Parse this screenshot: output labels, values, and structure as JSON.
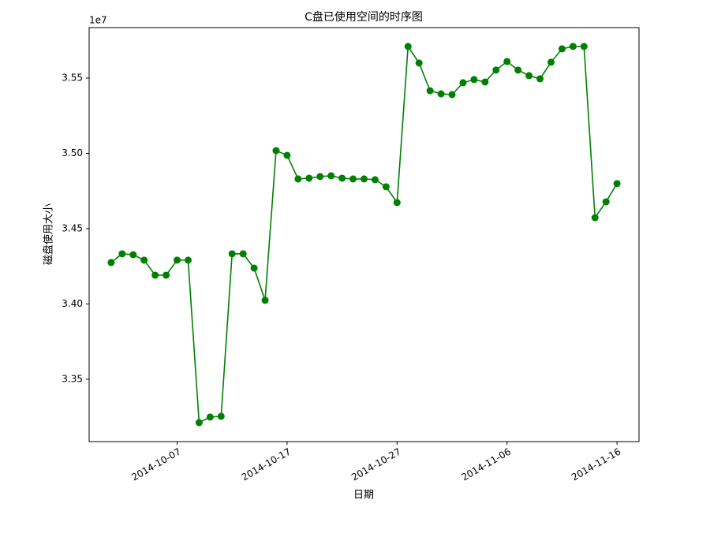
{
  "chart_data": {
    "type": "line",
    "title": "C盘已使用空间的时序图",
    "x_label": "日期",
    "y_label": "磁盘使用大小",
    "y_offset_label": "1e7",
    "x": [
      "2014-10-01",
      "2014-10-02",
      "2014-10-03",
      "2014-10-04",
      "2014-10-05",
      "2014-10-06",
      "2014-10-07",
      "2014-10-08",
      "2014-10-09",
      "2014-10-10",
      "2014-10-11",
      "2014-10-12",
      "2014-10-13",
      "2014-10-14",
      "2014-10-15",
      "2014-10-16",
      "2014-10-17",
      "2014-10-18",
      "2014-10-19",
      "2014-10-20",
      "2014-10-21",
      "2014-10-22",
      "2014-10-23",
      "2014-10-24",
      "2014-10-25",
      "2014-10-26",
      "2014-10-27",
      "2014-10-28",
      "2014-10-29",
      "2014-10-30",
      "2014-10-31",
      "2014-11-01",
      "2014-11-02",
      "2014-11-03",
      "2014-11-04",
      "2014-11-05",
      "2014-11-06",
      "2014-11-07",
      "2014-11-08",
      "2014-11-09",
      "2014-11-10",
      "2014-11-11",
      "2014-11-12",
      "2014-11-13",
      "2014-11-14",
      "2014-11-15",
      "2014-11-16"
    ],
    "series": [
      {
        "name": "磁盘使用大小",
        "color": "#008000",
        "values": [
          3.4275,
          3.4333,
          3.4327,
          3.4291,
          3.4191,
          3.4191,
          3.4291,
          3.4291,
          3.3212,
          3.3249,
          3.3254,
          3.4333,
          3.4333,
          3.4238,
          3.4024,
          3.5018,
          3.4987,
          3.483,
          3.4835,
          3.4846,
          3.4851,
          3.4835,
          3.483,
          3.483,
          3.4825,
          3.4778,
          3.4673,
          3.571,
          3.56,
          3.5416,
          3.5395,
          3.539,
          3.5469,
          3.549,
          3.5474,
          3.5553,
          3.561,
          3.5553,
          3.5516,
          3.5495,
          3.5605,
          3.5694,
          3.571,
          3.571,
          3.4573,
          3.4678,
          3.4799
        ]
      }
    ],
    "xlim": [
      "2014-09-29",
      "2014-11-18"
    ],
    "xticks": [
      "2014-10-07",
      "2014-10-17",
      "2014-10-27",
      "2014-11-06",
      "2014-11-16"
    ],
    "ylim": [
      3.3086,
      3.5835
    ],
    "yticks": [
      3.35,
      {
        "value": 3.4,
        "label": "3.40"
      },
      3.45,
      {
        "value": 3.5,
        "label": "3.50"
      },
      3.55
    ],
    "grid": false
  }
}
